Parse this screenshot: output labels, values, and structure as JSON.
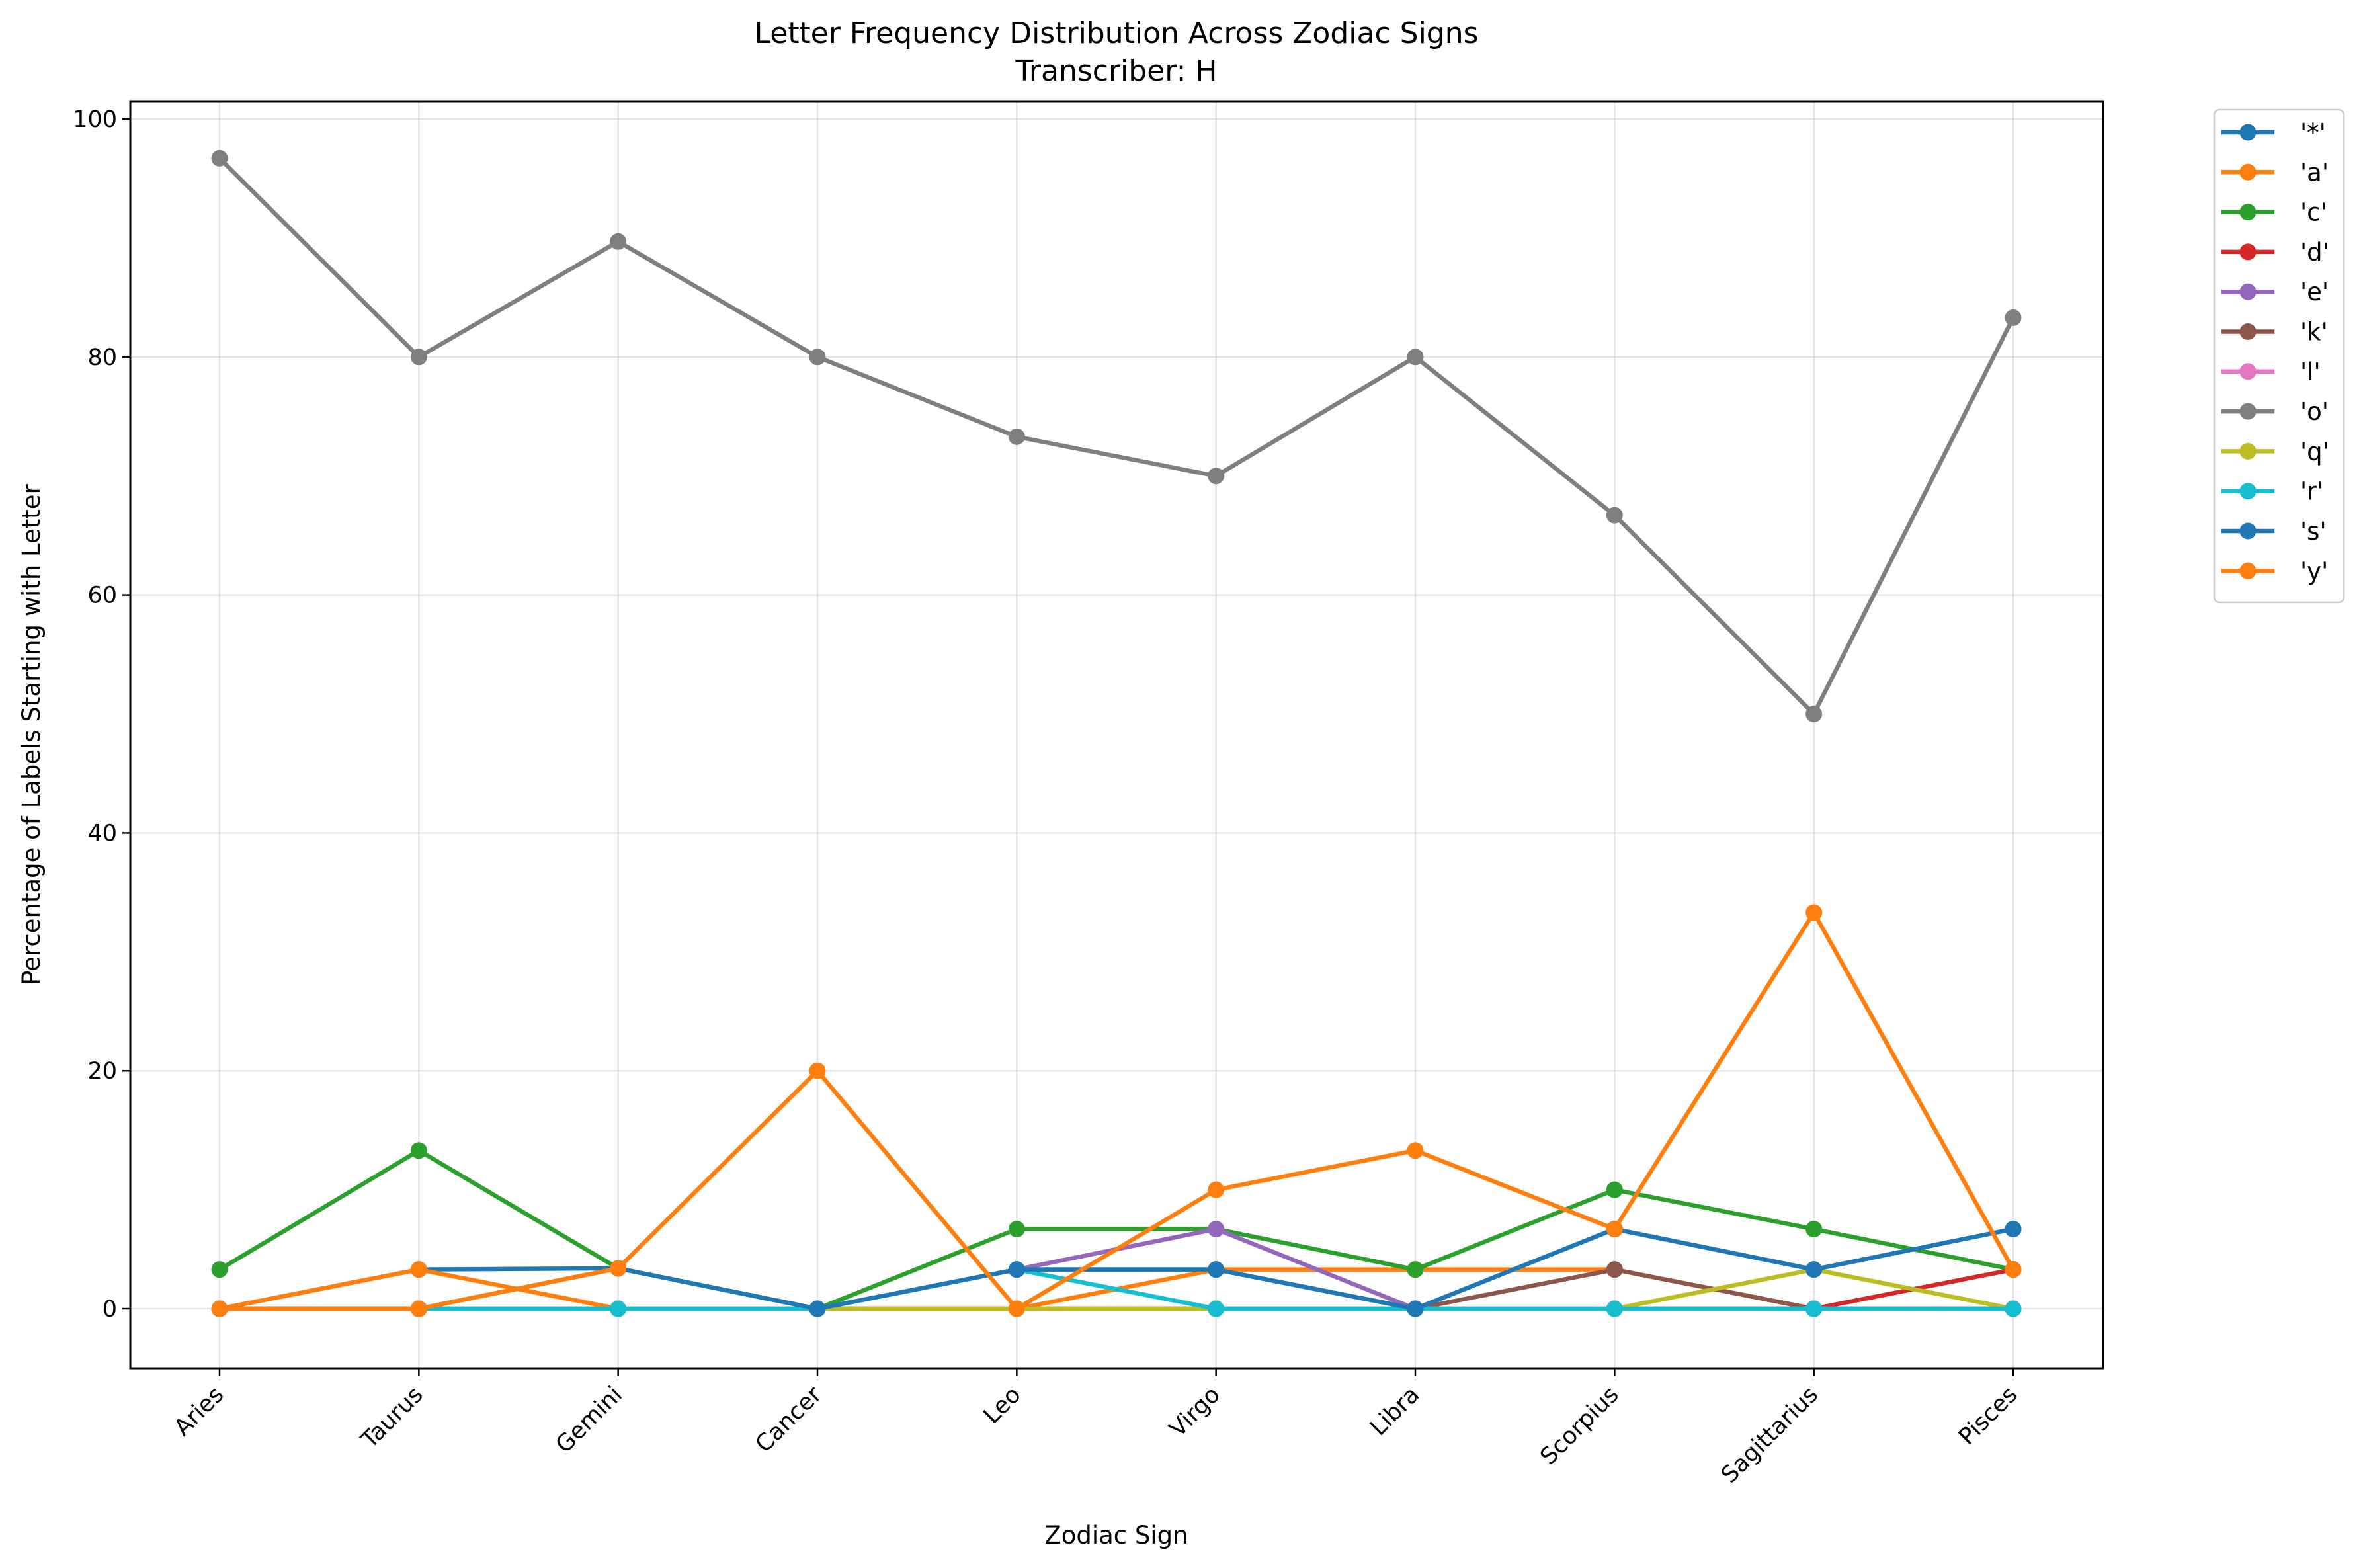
{
  "chart_data": {
    "type": "line",
    "title": "Letter Frequency Distribution Across Zodiac Signs",
    "subtitle": "Transcriber: H",
    "xlabel": "Zodiac Sign",
    "ylabel": "Percentage of Labels Starting with Letter",
    "ylim": [
      -5,
      101.5
    ],
    "yticks": [
      0,
      20,
      40,
      60,
      80,
      100
    ],
    "grid": true,
    "legend_position": "outside-top-right",
    "categories": [
      "Aries",
      "Taurus",
      "Gemini",
      "Cancer",
      "Leo",
      "Virgo",
      "Libra",
      "Scorpius",
      "Sagittarius",
      "Pisces"
    ],
    "series": [
      {
        "name": "'*'",
        "color": "#1f77b4",
        "values": [
          0,
          3.3,
          3.4,
          0,
          3.3,
          3.3,
          0,
          6.7,
          3.3,
          6.7
        ]
      },
      {
        "name": "'a'",
        "color": "#ff7f0e",
        "values": [
          0,
          3.3,
          0,
          0,
          0,
          3.3,
          3.3,
          3.3,
          0,
          0
        ]
      },
      {
        "name": "'c'",
        "color": "#2ca02c",
        "values": [
          3.3,
          13.3,
          3.4,
          0,
          6.7,
          6.7,
          3.3,
          10.0,
          6.7,
          3.3
        ]
      },
      {
        "name": "'d'",
        "color": "#d62728",
        "values": [
          0,
          0,
          0,
          0,
          0,
          0,
          0,
          0,
          0,
          3.3
        ]
      },
      {
        "name": "'e'",
        "color": "#9467bd",
        "values": [
          0,
          0,
          0,
          0,
          3.3,
          6.7,
          0,
          0,
          0,
          0
        ]
      },
      {
        "name": "'k'",
        "color": "#8c564b",
        "values": [
          0,
          0,
          0,
          0,
          0,
          0,
          0,
          3.3,
          0,
          0
        ]
      },
      {
        "name": "'l'",
        "color": "#e377c2",
        "values": [
          0,
          0,
          0,
          0,
          0,
          0,
          0,
          0,
          0,
          0
        ]
      },
      {
        "name": "'o'",
        "color": "#7f7f7f",
        "values": [
          96.7,
          80.0,
          89.7,
          80.0,
          73.3,
          70.0,
          80.0,
          66.7,
          50.0,
          83.3
        ]
      },
      {
        "name": "'q'",
        "color": "#bcbd22",
        "values": [
          0,
          0,
          0,
          0,
          0,
          0,
          0,
          0,
          3.3,
          0
        ]
      },
      {
        "name": "'r'",
        "color": "#17becf",
        "values": [
          0,
          0,
          0,
          0,
          3.3,
          0,
          0,
          0,
          0,
          0
        ]
      },
      {
        "name": "'s'",
        "color": "#1f77b4",
        "values": [
          0,
          0,
          3.4,
          0,
          3.3,
          3.3,
          0,
          6.7,
          3.3,
          6.7
        ]
      },
      {
        "name": "'y'",
        "color": "#ff7f0e",
        "values": [
          0,
          0,
          3.4,
          20.0,
          0,
          10.0,
          13.3,
          6.7,
          33.3,
          3.3
        ]
      }
    ]
  }
}
